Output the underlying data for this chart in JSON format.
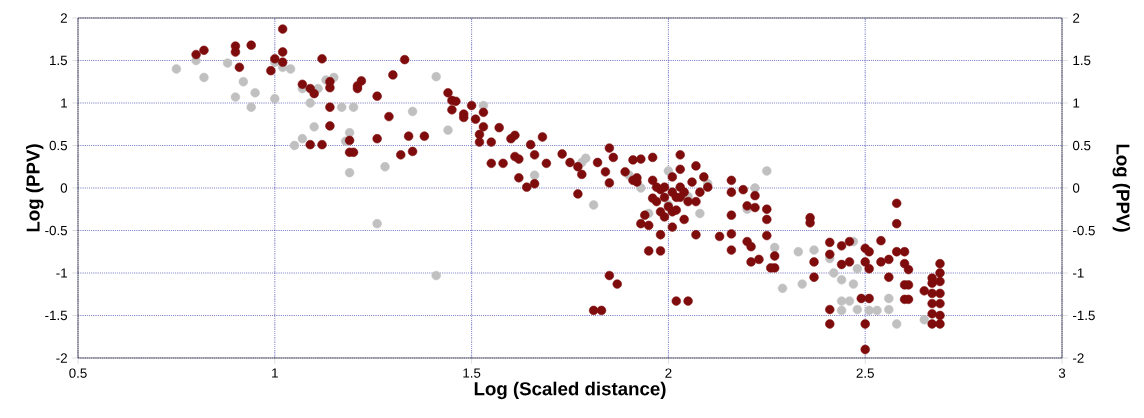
{
  "chart_data": {
    "type": "scatter",
    "xlabel": "Log (Scaled distance)",
    "ylabel": "Log (PPV)",
    "y2label": "Log (PPV)",
    "xlim": [
      0.5,
      3
    ],
    "xticks": [
      0.5,
      1,
      1.5,
      2,
      2.5,
      3
    ],
    "ylim": [
      -2,
      2
    ],
    "yticks": [
      -2,
      -1.5,
      -1,
      -0.5,
      0,
      0.5,
      1,
      1.5,
      2
    ],
    "y2lim": [
      -2,
      2
    ],
    "y2ticks": [
      -2,
      -1.5,
      -1,
      -0.5,
      0,
      0.5,
      1,
      1.5,
      2
    ],
    "grid": true,
    "marker": "circle",
    "series": [
      {
        "color": "#c0c0c0",
        "x": [
          0.75,
          0.8,
          0.82,
          0.88,
          0.9,
          0.92,
          0.94,
          0.95,
          1.0,
          1.0,
          1.02,
          1.04,
          1.05,
          1.07,
          1.07,
          1.09,
          1.1,
          1.11,
          1.13,
          1.15,
          1.17,
          1.18,
          1.19,
          1.19,
          1.2,
          1.26,
          1.28,
          1.35,
          1.41,
          1.41,
          1.44,
          1.53,
          1.66,
          1.79,
          1.78,
          1.81,
          1.9,
          1.93,
          1.95,
          2.0,
          2.05,
          2.08,
          2.0,
          2.1,
          2.22,
          2.25,
          2.2,
          2.27,
          2.29,
          2.33,
          2.34,
          2.37,
          2.41,
          2.42,
          2.44,
          2.44,
          2.44,
          2.46,
          2.47,
          2.47,
          2.48,
          2.48,
          2.51,
          2.53,
          2.56,
          2.56,
          2.58,
          2.65
        ],
        "values": [
          1.4,
          1.5,
          1.3,
          1.47,
          1.07,
          1.25,
          0.95,
          1.12,
          1.05,
          1.48,
          1.42,
          1.4,
          0.5,
          1.17,
          0.58,
          1.0,
          0.72,
          1.17,
          1.27,
          1.3,
          0.95,
          0.55,
          0.65,
          0.18,
          0.95,
          -0.42,
          0.25,
          0.9,
          1.31,
          -1.03,
          0.68,
          0.97,
          0.15,
          0.35,
          0.3,
          -0.2,
          0.15,
          0.0,
          -0.3,
          0.2,
          -0.1,
          -0.3,
          -0.2,
          0.05,
          0.0,
          0.2,
          -0.25,
          -0.7,
          -1.18,
          -0.75,
          -1.13,
          -0.73,
          -0.83,
          -1.0,
          -1.08,
          -1.33,
          -1.44,
          -1.33,
          -1.13,
          -0.63,
          -1.43,
          -0.95,
          -1.44,
          -1.44,
          -1.43,
          -1.3,
          -1.6,
          -1.55
        ]
      },
      {
        "color": "#7f0c0c",
        "x": [
          0.8,
          0.82,
          0.9,
          0.9,
          0.91,
          0.94,
          1.0,
          1.02,
          1.02,
          1.02,
          0.99,
          1.07,
          1.09,
          1.1,
          1.12,
          1.14,
          1.14,
          1.14,
          1.21,
          1.21,
          1.22,
          1.26,
          1.29,
          1.09,
          1.12,
          1.14,
          1.19,
          1.19,
          1.2,
          1.26,
          1.3,
          1.33,
          1.34,
          1.32,
          1.35,
          1.38,
          1.44,
          1.45,
          1.46,
          1.45,
          1.48,
          1.48,
          1.5,
          1.53,
          1.51,
          1.53,
          1.52,
          1.52,
          1.55,
          1.57,
          1.55,
          1.58,
          1.61,
          1.62,
          1.6,
          1.61,
          1.68,
          1.65,
          1.66,
          1.69,
          1.62,
          1.64,
          1.66,
          1.73,
          1.75,
          1.77,
          1.78,
          1.77,
          1.84,
          1.82,
          1.85,
          1.85,
          1.86,
          1.85,
          1.87,
          1.81,
          1.83,
          1.89,
          1.93,
          1.91,
          1.92,
          1.91,
          1.92,
          1.96,
          1.96,
          1.97,
          1.98,
          1.94,
          1.93,
          1.95,
          1.98,
          1.95,
          1.98,
          2.03,
          2.03,
          2.07,
          2.09,
          2.1,
          2.08,
          2.05,
          2.01,
          2.04,
          2.07,
          2.13,
          2.16,
          2.16,
          2.16,
          2.16,
          2.16,
          2.19,
          2.22,
          2.2,
          2.22,
          2.25,
          2.25,
          2.25,
          2.2,
          2.21,
          2.23,
          2.21,
          2.27,
          2.27,
          2.26,
          2.36,
          2.36,
          2.37,
          2.37,
          2.02,
          2.05,
          1.99,
          2.01,
          2.02,
          1.99,
          2.03,
          2.0,
          2.02,
          1.98,
          2.01,
          2.04,
          2.06,
          1.97,
          1.96,
          1.99,
          2.03,
          2.07,
          2.01,
          2.41,
          2.41,
          2.44,
          2.46,
          2.46,
          2.44,
          2.5,
          2.51,
          2.5,
          2.51,
          2.51,
          2.49,
          2.41,
          2.41,
          2.5,
          2.5,
          2.54,
          2.54,
          2.56,
          2.56,
          2.58,
          2.6,
          2.6,
          2.61,
          2.6,
          2.61,
          2.6,
          2.61,
          2.58,
          2.58,
          2.65,
          2.67,
          2.69,
          2.69,
          2.69,
          2.67,
          2.67,
          2.69,
          2.67,
          2.69,
          2.67,
          2.69,
          2.69,
          2.67
        ],
        "values": [
          1.57,
          1.62,
          1.67,
          1.6,
          1.42,
          1.68,
          1.52,
          1.87,
          1.6,
          1.48,
          1.38,
          1.22,
          1.17,
          1.11,
          1.52,
          1.18,
          1.25,
          0.95,
          1.2,
          1.17,
          1.26,
          1.08,
          0.84,
          0.51,
          0.51,
          0.73,
          0.56,
          0.42,
          0.42,
          0.58,
          1.33,
          1.51,
          0.61,
          0.39,
          0.43,
          0.61,
          1.12,
          1.03,
          1.02,
          0.92,
          0.87,
          0.83,
          0.97,
          0.89,
          0.81,
          0.72,
          0.63,
          0.54,
          0.54,
          0.71,
          0.29,
          0.29,
          0.37,
          0.34,
          0.58,
          0.62,
          0.6,
          0.51,
          0.39,
          0.29,
          0.12,
          0.01,
          0.05,
          0.4,
          0.3,
          0.25,
          0.16,
          -0.07,
          0.19,
          0.3,
          0.06,
          0.47,
          0.36,
          -1.03,
          -1.13,
          -1.44,
          -1.44,
          0.19,
          0.34,
          0.33,
          0.12,
          0.09,
          0.07,
          0.36,
          0.09,
          -0.16,
          -0.28,
          -0.32,
          -0.42,
          -0.44,
          -0.55,
          -0.74,
          -0.74,
          0.39,
          0.22,
          0.26,
          0.13,
          0.01,
          -0.05,
          -0.16,
          -0.28,
          -0.37,
          -0.55,
          -0.57,
          -0.54,
          0.09,
          -0.05,
          -0.32,
          -0.73,
          -0.02,
          -0.09,
          -0.21,
          -0.23,
          -0.25,
          -0.37,
          -0.56,
          -0.63,
          -0.69,
          -0.84,
          -0.87,
          -0.8,
          -0.94,
          -0.94,
          -0.35,
          -0.41,
          -1.05,
          -0.87,
          -1.33,
          -1.33,
          0.01,
          -0.05,
          -0.11,
          -0.11,
          0.01,
          -0.22,
          -0.26,
          -0.02,
          0.13,
          -0.05,
          0.07,
          0.01,
          -0.12,
          -0.34,
          -0.11,
          -0.16,
          -0.46,
          -0.64,
          -0.78,
          -0.68,
          -0.63,
          -0.87,
          -0.9,
          -0.71,
          -0.75,
          -0.87,
          -0.95,
          -1.3,
          -1.3,
          -1.43,
          -1.6,
          -1.6,
          -1.9,
          -0.62,
          -0.87,
          -0.84,
          -1.05,
          -0.75,
          -0.75,
          -0.89,
          -0.96,
          -1.14,
          -1.14,
          -1.31,
          -1.31,
          -0.18,
          -0.42,
          -1.21,
          -1.06,
          -0.89,
          -1.0,
          -1.1,
          -1.12,
          -1.24,
          -1.24,
          -1.36,
          -1.36,
          -1.6,
          -1.6,
          -1.5,
          -1.48
        ]
      }
    ]
  }
}
